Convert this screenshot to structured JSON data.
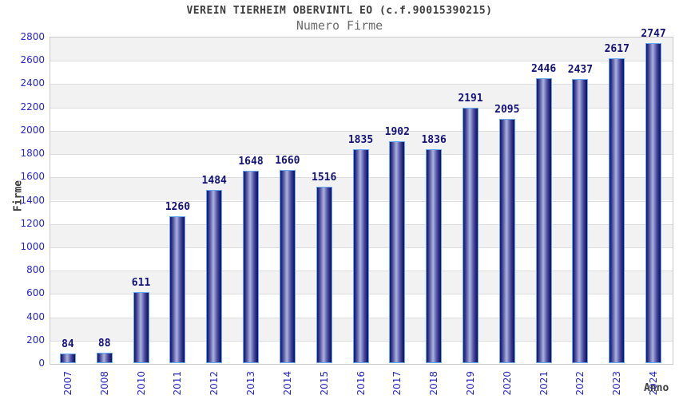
{
  "chart_data": {
    "type": "bar",
    "title": "VEREIN TIERHEIM OBERVINTL EO (c.f.90015390215)",
    "subtitle": "Numero Firme",
    "xlabel": "Anno",
    "ylabel": "Firme",
    "categories": [
      "2007",
      "2008",
      "2010",
      "2011",
      "2012",
      "2013",
      "2014",
      "2015",
      "2016",
      "2017",
      "2018",
      "2019",
      "2020",
      "2021",
      "2022",
      "2023",
      "2024"
    ],
    "values": [
      84,
      88,
      611,
      1260,
      1484,
      1648,
      1660,
      1516,
      1835,
      1902,
      1836,
      2191,
      2095,
      2446,
      2437,
      2617,
      2747
    ],
    "ylim": [
      0,
      2800
    ],
    "ytick_step": 200,
    "grid": "horizontal gridlines with alternating gray/white bands",
    "legend": "none",
    "bar_value_labels_shown": true,
    "colors": {
      "bar_edge": "#14146a",
      "bar_mid": "#a9aed9",
      "bar_border": "#63a8f0",
      "tick_label": "#2525c8",
      "value_label": "#12127a",
      "band_gray": "#f2f2f2",
      "gridline": "#dcdcdc",
      "plot_frame": "#c9c9c9",
      "title": "#3c3c3c",
      "subtitle": "#6a6a6a",
      "background": "#ffffff"
    }
  }
}
